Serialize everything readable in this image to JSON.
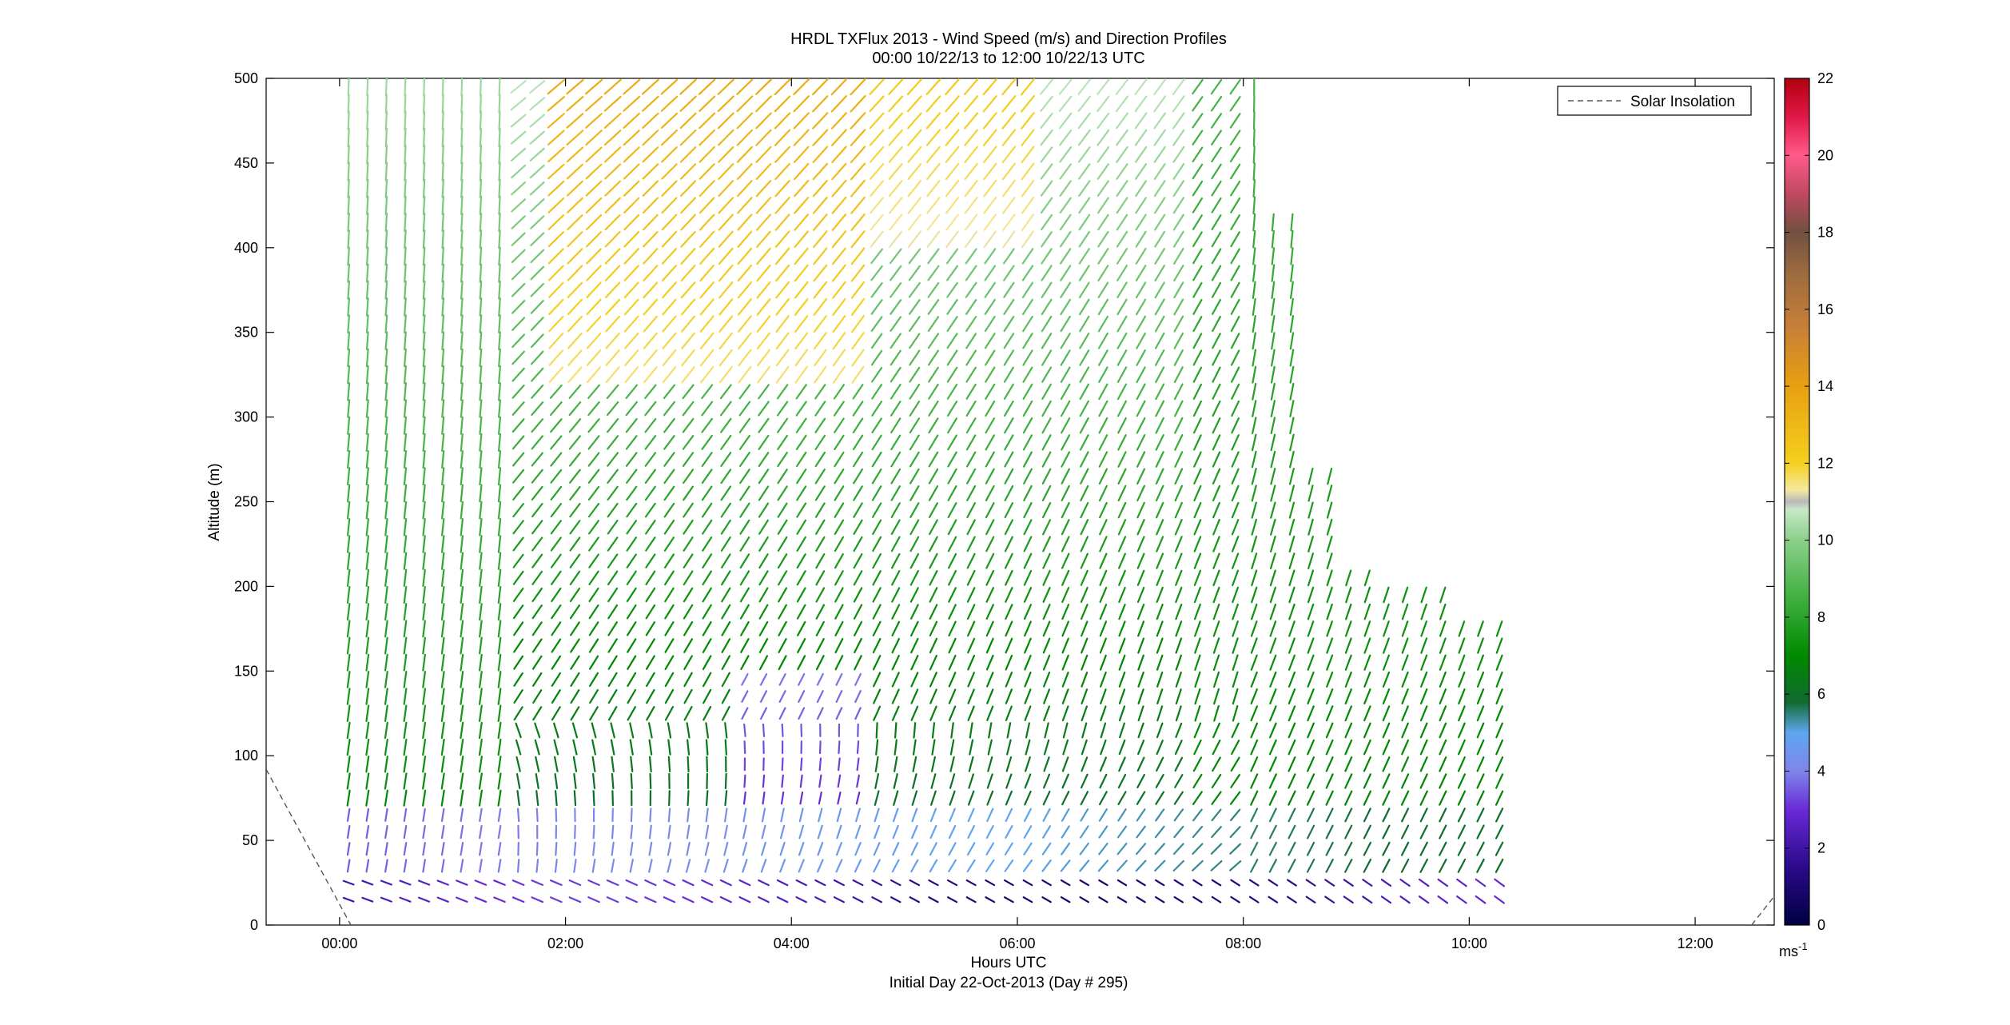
{
  "chart_data": {
    "type": "quiver",
    "title": "HRDL TXFlux 2013 - Wind Speed (m/s) and Direction Profiles",
    "subtitle": "00:00 10/22/13 to 12:00 10/22/13  UTC",
    "xlabel": "Hours UTC",
    "xlabel2": "Initial Day 22-Oct-2013 (Day # 295)",
    "ylabel": "Altitude (m)",
    "xlim": [
      -0.65,
      12.7
    ],
    "ylim": [
      0,
      500
    ],
    "x_ticks": [
      0,
      2,
      4,
      6,
      8,
      10,
      12
    ],
    "x_tick_labels": [
      "00:00",
      "02:00",
      "04:00",
      "06:00",
      "08:00",
      "10:00",
      "12:00"
    ],
    "y_ticks": [
      0,
      50,
      100,
      150,
      200,
      250,
      300,
      350,
      400,
      450,
      500
    ],
    "y_tick_labels": [
      "0",
      "50",
      "100",
      "150",
      "200",
      "250",
      "300",
      "350",
      "400",
      "450",
      "500"
    ],
    "legend": {
      "entries": [
        "Solar Insolation"
      ],
      "placement": "top-right",
      "style": "dashed",
      "color": "#555555"
    },
    "colorbar": {
      "min": 0,
      "max": 22,
      "ticks": [
        0,
        2,
        4,
        6,
        8,
        10,
        12,
        14,
        16,
        18,
        20,
        22
      ],
      "tick_labels": [
        "0",
        "2",
        "4",
        "6",
        "8",
        "10",
        "12",
        "14",
        "16",
        "18",
        "20",
        "22"
      ],
      "units": "ms",
      "units_exponent": "-1",
      "stops": [
        {
          "v": 0,
          "c": "#000040"
        },
        {
          "v": 1.5,
          "c": "#2a0a8a"
        },
        {
          "v": 3,
          "c": "#6a2ad8"
        },
        {
          "v": 4,
          "c": "#7f86ea"
        },
        {
          "v": 5,
          "c": "#5fa6ef"
        },
        {
          "v": 5.8,
          "c": "#106a30"
        },
        {
          "v": 7,
          "c": "#008a00"
        },
        {
          "v": 8.5,
          "c": "#40b040"
        },
        {
          "v": 10,
          "c": "#8ad08a"
        },
        {
          "v": 10.8,
          "c": "#c8e8c8"
        },
        {
          "v": 11,
          "c": "#b8b8b8"
        },
        {
          "v": 11.3,
          "c": "#f4e8a0"
        },
        {
          "v": 12,
          "c": "#f4d020"
        },
        {
          "v": 14,
          "c": "#e8a010"
        },
        {
          "v": 15.5,
          "c": "#c88038"
        },
        {
          "v": 17,
          "c": "#9a6a40"
        },
        {
          "v": 18,
          "c": "#705040"
        },
        {
          "v": 19,
          "c": "#c04860"
        },
        {
          "v": 20,
          "c": "#ff5a8a"
        },
        {
          "v": 21,
          "c": "#e01848"
        },
        {
          "v": 22,
          "c": "#b00010"
        }
      ]
    },
    "solar_insolation": {
      "x": [
        -0.65,
        0.1,
        12.5,
        12.7
      ],
      "y": [
        92,
        0,
        0,
        17
      ]
    },
    "quiver_grid": {
      "time_start_h": 0.08,
      "time_step_h": 0.167,
      "time_count": 62,
      "altitudes_m": [
        15,
        25,
        35,
        45,
        55,
        65,
        75,
        85,
        95,
        105,
        115,
        125,
        135,
        145,
        155,
        165,
        175,
        185,
        195,
        205,
        215,
        225,
        235,
        245,
        255,
        265,
        275,
        285,
        295,
        305,
        315,
        325,
        335,
        345,
        355,
        365,
        375,
        385,
        395,
        405,
        415,
        425,
        435,
        445,
        455,
        465,
        475,
        485,
        495
      ]
    }
  }
}
